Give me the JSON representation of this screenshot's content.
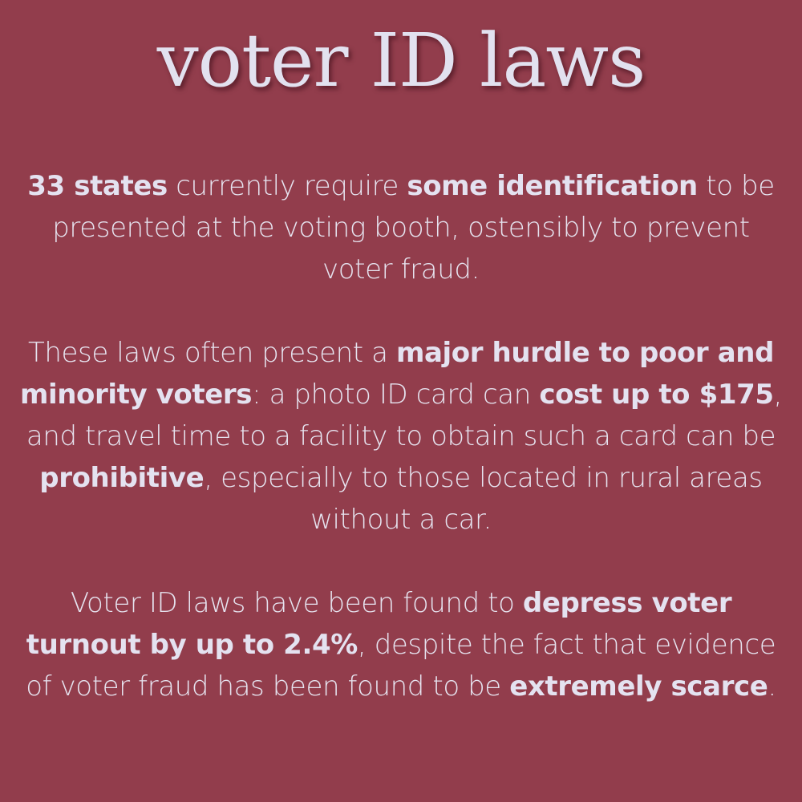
{
  "title": "voter ID laws",
  "colors": {
    "background": "#923d4c",
    "text": "#e6e3ef"
  },
  "paragraphs": [
    {
      "segments": [
        {
          "text": "33 states",
          "bold": true
        },
        {
          "text": " currently require ",
          "bold": false
        },
        {
          "text": "some identification",
          "bold": true
        },
        {
          "text": " to be presented at the voting booth, ostensibly to prevent voter fraud.",
          "bold": false
        }
      ]
    },
    {
      "segments": [
        {
          "text": "These laws often present a ",
          "bold": false
        },
        {
          "text": "major hurdle to poor and minority voters",
          "bold": true
        },
        {
          "text": ": a photo ID card can ",
          "bold": false
        },
        {
          "text": "cost up to $175",
          "bold": true
        },
        {
          "text": ", and travel time to a facility to obtain such a card can be ",
          "bold": false
        },
        {
          "text": "prohibitive",
          "bold": true
        },
        {
          "text": ", especially to those located in rural areas without a car.",
          "bold": false
        }
      ]
    },
    {
      "segments": [
        {
          "text": "Voter ID laws have been found to ",
          "bold": false
        },
        {
          "text": "depress voter turnout by up to 2.4%",
          "bold": true
        },
        {
          "text": ", despite the fact that evidence of voter fraud has been found to be ",
          "bold": false
        },
        {
          "text": "extremely scarce",
          "bold": true
        },
        {
          "text": ".",
          "bold": false
        }
      ]
    }
  ]
}
